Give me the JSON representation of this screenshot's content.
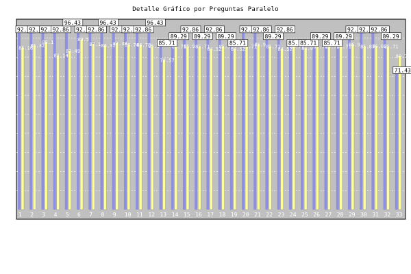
{
  "title": "Detalle Gráfico por Preguntas Paralelo",
  "colors": {
    "background": "#c0c0c0",
    "series_a": "#8f8fdf",
    "series_b": "#ffff99",
    "grid": "#ffffff",
    "label_box": "#ffffff"
  },
  "chart_data": {
    "type": "bar",
    "title": "Detalle Gráfico por Preguntas Paralelo",
    "xlabel": "",
    "ylabel": "",
    "ylim": [
      0,
      100
    ],
    "yticks": [
      10,
      20,
      30,
      40,
      50,
      60,
      70,
      80,
      90
    ],
    "grid": true,
    "legend": "none",
    "categories": [
      "1",
      "2",
      "3",
      "4",
      "5",
      "6",
      "7",
      "8",
      "9",
      "10",
      "11",
      "12",
      "13",
      "14",
      "15",
      "16",
      "17",
      "18",
      "19",
      "20",
      "21",
      "22",
      "23",
      "24",
      "25",
      "26",
      "27",
      "28",
      "29",
      "30",
      "31",
      "32",
      "33"
    ],
    "series": [
      {
        "values": [
          92.86,
          92.86,
          92.86,
          92.86,
          96.43,
          92.86,
          92.86,
          96.43,
          92.86,
          92.86,
          92.86,
          96.43,
          85.71,
          89.29,
          92.86,
          89.29,
          92.86,
          89.29,
          85.71,
          92.86,
          92.86,
          89.29,
          92.86,
          85.71,
          85.71,
          89.29,
          85.71,
          89.29,
          92.86,
          92.86,
          92.86,
          89.29,
          71.43
        ]
      },
      {
        "values": [
          85.16,
          86.32,
          88.1,
          81.14,
          83.49,
          89.5,
          87.1,
          86.32,
          87.48,
          86.74,
          86.78,
          85.9,
          78.57,
          85.71,
          85.9,
          85.71,
          84.52,
          85.71,
          84.52,
          85.71,
          86.9,
          85.71,
          84.52,
          85.71,
          84.9,
          85.71,
          85.71,
          85.71,
          86.9,
          85.87,
          86.02,
          85.71,
          80.77
        ]
      }
    ]
  }
}
